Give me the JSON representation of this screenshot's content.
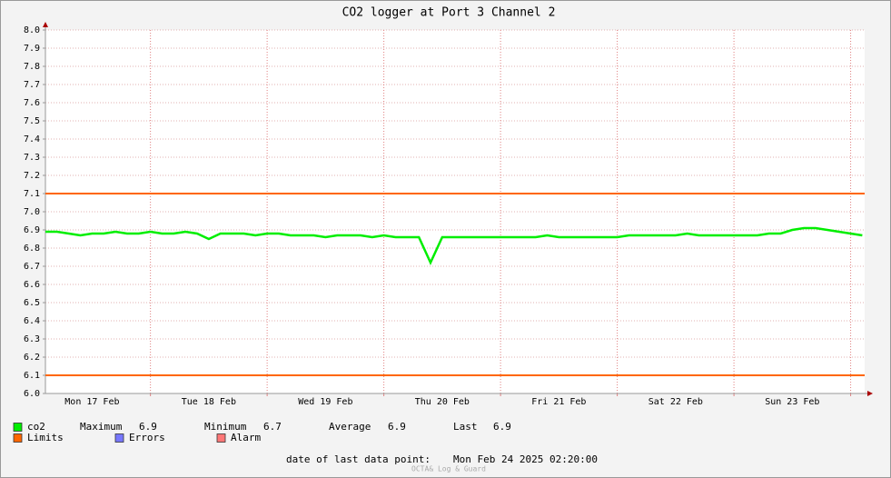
{
  "chart_data": {
    "type": "line",
    "title": "CO2 logger at Port 3 Channel 2",
    "x": [
      0.1,
      0.2,
      0.3,
      0.4,
      0.5,
      0.6,
      0.7,
      0.8,
      0.9,
      1.0,
      1.1,
      1.2,
      1.3,
      1.4,
      1.5,
      1.6,
      1.7,
      1.8,
      1.9,
      2.0,
      2.1,
      2.2,
      2.3,
      2.4,
      2.5,
      2.6,
      2.7,
      2.8,
      2.9,
      3.0,
      3.1,
      3.2,
      3.3,
      3.4,
      3.5,
      3.6,
      3.7,
      3.8,
      3.9,
      4.0,
      4.1,
      4.2,
      4.3,
      4.4,
      4.5,
      4.6,
      4.7,
      4.8,
      4.9,
      5.0,
      5.1,
      5.2,
      5.3,
      5.4,
      5.5,
      5.6,
      5.7,
      5.8,
      5.9,
      6.0,
      6.1,
      6.2,
      6.3,
      6.4,
      6.5,
      6.6,
      6.7,
      6.8,
      6.9,
      7.0,
      7.1
    ],
    "series": [
      {
        "name": "co2",
        "color": "#00ee00",
        "values": [
          6.89,
          6.89,
          6.88,
          6.87,
          6.88,
          6.88,
          6.89,
          6.88,
          6.88,
          6.89,
          6.88,
          6.88,
          6.89,
          6.88,
          6.85,
          6.88,
          6.88,
          6.88,
          6.87,
          6.88,
          6.88,
          6.87,
          6.87,
          6.87,
          6.86,
          6.87,
          6.87,
          6.87,
          6.86,
          6.87,
          6.86,
          6.86,
          6.86,
          6.72,
          6.86,
          6.86,
          6.86,
          6.86,
          6.86,
          6.86,
          6.86,
          6.86,
          6.86,
          6.87,
          6.86,
          6.86,
          6.86,
          6.86,
          6.86,
          6.86,
          6.87,
          6.87,
          6.87,
          6.87,
          6.87,
          6.88,
          6.87,
          6.87,
          6.87,
          6.87,
          6.87,
          6.87,
          6.88,
          6.88,
          6.9,
          6.91,
          6.91,
          6.9,
          6.89,
          6.88,
          6.87
        ]
      }
    ],
    "limits": {
      "name": "Limits",
      "color": "#ff6600",
      "values": [
        7.1,
        6.1
      ]
    },
    "extra_legend": [
      {
        "name": "Errors",
        "color": "#7777ff"
      },
      {
        "name": "Alarm",
        "color": "#ff7777"
      }
    ],
    "stats": [
      {
        "label": "Maximum",
        "value": 6.9
      },
      {
        "label": "Minimum",
        "value": 6.7
      },
      {
        "label": "Average",
        "value": 6.9
      },
      {
        "label": "Last",
        "value": 6.9
      }
    ],
    "xlim": [
      0.1,
      7.12
    ],
    "xticks": [
      {
        "value": 0.5,
        "label": "Mon 17 Feb"
      },
      {
        "value": 1.5,
        "label": "Tue 18 Feb"
      },
      {
        "value": 2.5,
        "label": "Wed 19 Feb"
      },
      {
        "value": 3.5,
        "label": "Thu 20 Feb"
      },
      {
        "value": 4.5,
        "label": "Fri 21 Feb"
      },
      {
        "value": 5.5,
        "label": "Sat 22 Feb"
      },
      {
        "value": 6.5,
        "label": "Sun 23 Feb"
      }
    ],
    "xgrid_major": [
      1,
      2,
      3,
      4,
      5,
      6,
      7
    ],
    "ylim": [
      6.0,
      8.0
    ],
    "yticks": [
      {
        "value": 6.0,
        "label": "6.0"
      },
      {
        "value": 6.1,
        "label": "6.1"
      },
      {
        "value": 6.2,
        "label": "6.2"
      },
      {
        "value": 6.3,
        "label": "6.3"
      },
      {
        "value": 6.4,
        "label": "6.4"
      },
      {
        "value": 6.5,
        "label": "6.5"
      },
      {
        "value": 6.6,
        "label": "6.6"
      },
      {
        "value": 6.7,
        "label": "6.7"
      },
      {
        "value": 6.8,
        "label": "6.8"
      },
      {
        "value": 6.9,
        "label": "6.9"
      },
      {
        "value": 7.0,
        "label": "7.0"
      },
      {
        "value": 7.1,
        "label": "7.1"
      },
      {
        "value": 7.2,
        "label": "7.2"
      },
      {
        "value": 7.3,
        "label": "7.3"
      },
      {
        "value": 7.4,
        "label": "7.4"
      },
      {
        "value": 7.5,
        "label": "7.5"
      },
      {
        "value": 7.6,
        "label": "7.6"
      },
      {
        "value": 7.7,
        "label": "7.7"
      },
      {
        "value": 7.8,
        "label": "7.8"
      },
      {
        "value": 7.9,
        "label": "7.9"
      },
      {
        "value": 8.0,
        "label": "8.0"
      }
    ],
    "grid": true,
    "footer": {
      "label": "date of last data point:",
      "value": "Mon Feb 24 2025 02:20:00"
    },
    "watermark": "OCTA& Log & Guard"
  }
}
